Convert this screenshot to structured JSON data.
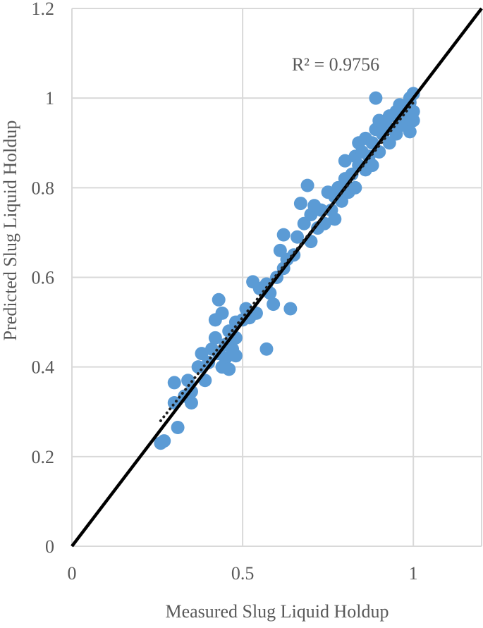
{
  "chart_data": {
    "type": "scatter",
    "title": "",
    "xlabel": "Measured Slug Liquid Holdup",
    "ylabel": "Predicted Slug Liquid Holdup",
    "xlim": [
      0,
      1.2
    ],
    "ylim": [
      0,
      1.2
    ],
    "x_ticks": [
      0,
      0.5,
      1
    ],
    "y_ticks": [
      0,
      0.2,
      0.4,
      0.6,
      0.8,
      1,
      1.2
    ],
    "x_tick_labels": [
      "0",
      "0.5",
      "1"
    ],
    "y_tick_labels": [
      "0",
      "0.2",
      "0.4",
      "0.6",
      "0.8",
      "1",
      "1.2"
    ],
    "grid": true,
    "legend": "none",
    "annotation": "R² = 0.9756",
    "colors": {
      "points": "#5b9bd5",
      "reference_line": "#000000",
      "trendline": "#1f1f1f",
      "grid": "#d9d9d9"
    },
    "reference_line": {
      "name": "",
      "points": [
        [
          0,
          0
        ],
        [
          1.2,
          1.2
        ]
      ]
    },
    "trendline": {
      "name": "",
      "points": [
        [
          0.26,
          0.28
        ],
        [
          1.0,
          0.99
        ]
      ]
    },
    "series": [
      {
        "name": "",
        "points": [
          [
            0.26,
            0.23
          ],
          [
            0.27,
            0.235
          ],
          [
            0.31,
            0.265
          ],
          [
            0.3,
            0.32
          ],
          [
            0.3,
            0.365
          ],
          [
            0.33,
            0.335
          ],
          [
            0.34,
            0.37
          ],
          [
            0.35,
            0.32
          ],
          [
            0.35,
            0.345
          ],
          [
            0.37,
            0.4
          ],
          [
            0.38,
            0.43
          ],
          [
            0.39,
            0.37
          ],
          [
            0.4,
            0.41
          ],
          [
            0.41,
            0.44
          ],
          [
            0.42,
            0.465
          ],
          [
            0.43,
            0.43
          ],
          [
            0.43,
            0.55
          ],
          [
            0.44,
            0.52
          ],
          [
            0.44,
            0.4
          ],
          [
            0.45,
            0.45
          ],
          [
            0.45,
            0.42
          ],
          [
            0.46,
            0.48
          ],
          [
            0.46,
            0.395
          ],
          [
            0.47,
            0.44
          ],
          [
            0.48,
            0.5
          ],
          [
            0.48,
            0.465
          ],
          [
            0.48,
            0.425
          ],
          [
            0.42,
            0.505
          ],
          [
            0.5,
            0.505
          ],
          [
            0.51,
            0.53
          ],
          [
            0.52,
            0.51
          ],
          [
            0.53,
            0.59
          ],
          [
            0.54,
            0.52
          ],
          [
            0.55,
            0.575
          ],
          [
            0.57,
            0.585
          ],
          [
            0.57,
            0.44
          ],
          [
            0.58,
            0.565
          ],
          [
            0.59,
            0.54
          ],
          [
            0.6,
            0.6
          ],
          [
            0.61,
            0.66
          ],
          [
            0.62,
            0.695
          ],
          [
            0.62,
            0.62
          ],
          [
            0.63,
            0.64
          ],
          [
            0.64,
            0.53
          ],
          [
            0.65,
            0.65
          ],
          [
            0.66,
            0.69
          ],
          [
            0.67,
            0.765
          ],
          [
            0.68,
            0.72
          ],
          [
            0.69,
            0.805
          ],
          [
            0.7,
            0.74
          ],
          [
            0.7,
            0.68
          ],
          [
            0.71,
            0.76
          ],
          [
            0.72,
            0.71
          ],
          [
            0.73,
            0.75
          ],
          [
            0.74,
            0.72
          ],
          [
            0.75,
            0.79
          ],
          [
            0.76,
            0.75
          ],
          [
            0.77,
            0.73
          ],
          [
            0.77,
            0.78
          ],
          [
            0.78,
            0.8
          ],
          [
            0.79,
            0.77
          ],
          [
            0.8,
            0.86
          ],
          [
            0.8,
            0.82
          ],
          [
            0.81,
            0.79
          ],
          [
            0.82,
            0.83
          ],
          [
            0.83,
            0.87
          ],
          [
            0.83,
            0.8
          ],
          [
            0.84,
            0.9
          ],
          [
            0.84,
            0.85
          ],
          [
            0.85,
            0.88
          ],
          [
            0.86,
            0.91
          ],
          [
            0.86,
            0.84
          ],
          [
            0.87,
            0.87
          ],
          [
            0.88,
            0.9
          ],
          [
            0.88,
            0.85
          ],
          [
            0.89,
            0.93
          ],
          [
            0.89,
            1.0
          ],
          [
            0.9,
            0.88
          ],
          [
            0.9,
            0.95
          ],
          [
            0.91,
            0.92
          ],
          [
            0.92,
            0.94
          ],
          [
            0.93,
            0.9
          ],
          [
            0.93,
            0.96
          ],
          [
            0.94,
            0.93
          ],
          [
            0.95,
            0.97
          ],
          [
            0.95,
            0.92
          ],
          [
            0.96,
            0.95
          ],
          [
            0.97,
            0.98
          ],
          [
            0.97,
            0.94
          ],
          [
            0.98,
            0.96
          ],
          [
            0.99,
            0.99
          ],
          [
            0.99,
            0.925
          ],
          [
            1.0,
            1.01
          ],
          [
            1.0,
            0.97
          ],
          [
            0.99,
            1.0
          ],
          [
            1.0,
            0.95
          ],
          [
            0.98,
            0.985
          ],
          [
            0.96,
            0.985
          ]
        ]
      }
    ]
  }
}
